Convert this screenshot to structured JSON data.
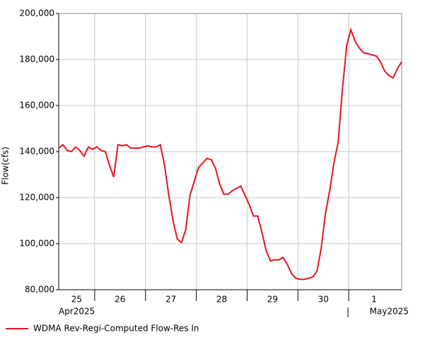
{
  "chart_data": {
    "type": "line",
    "ylabel": "Flow(cfs)",
    "xlim": [
      "2025-04-25T07:00",
      "2025-05-02T01:00"
    ],
    "ylim": [
      80000,
      200000
    ],
    "yticks": [
      {
        "value": 80000,
        "label": "80,000"
      },
      {
        "value": 100000,
        "label": "100,000"
      },
      {
        "value": 120000,
        "label": "120,000"
      },
      {
        "value": 140000,
        "label": "140,000"
      },
      {
        "value": 160000,
        "label": "160,000"
      },
      {
        "value": 180000,
        "label": "180,000"
      },
      {
        "value": 200000,
        "label": "200,000"
      }
    ],
    "grid": true,
    "days": [
      {
        "label": "25",
        "start": "2025-04-25T00:00"
      },
      {
        "label": "26",
        "start": "2025-04-26T00:00"
      },
      {
        "label": "27",
        "start": "2025-04-27T00:00"
      },
      {
        "label": "28",
        "start": "2025-04-28T00:00"
      },
      {
        "label": "29",
        "start": "2025-04-29T00:00"
      },
      {
        "label": "30",
        "start": "2025-04-30T00:00"
      },
      {
        "label": "1",
        "start": "2025-05-01T00:00"
      }
    ],
    "months": [
      {
        "label": "Apr2025",
        "start": "2025-04-01T00:00"
      },
      {
        "label": "May2025",
        "start": "2025-05-01T00:00"
      }
    ],
    "legend": "bottom-left",
    "x": [
      "2025-04-25T07:00",
      "2025-04-25T09:00",
      "2025-04-25T11:00",
      "2025-04-25T13:00",
      "2025-04-25T15:00",
      "2025-04-25T17:00",
      "2025-04-25T19:00",
      "2025-04-25T21:00",
      "2025-04-25T23:00",
      "2025-04-26T01:00",
      "2025-04-26T03:00",
      "2025-04-26T05:00",
      "2025-04-26T07:00",
      "2025-04-26T09:00",
      "2025-04-26T11:00",
      "2025-04-26T13:00",
      "2025-04-26T15:00",
      "2025-04-26T17:00",
      "2025-04-26T19:00",
      "2025-04-26T21:00",
      "2025-04-26T23:00",
      "2025-04-27T01:00",
      "2025-04-27T03:00",
      "2025-04-27T05:00",
      "2025-04-27T07:00",
      "2025-04-27T09:00",
      "2025-04-27T11:00",
      "2025-04-27T13:00",
      "2025-04-27T15:00",
      "2025-04-27T17:00",
      "2025-04-27T19:00",
      "2025-04-27T21:00",
      "2025-04-27T23:00",
      "2025-04-28T01:00",
      "2025-04-28T03:00",
      "2025-04-28T05:00",
      "2025-04-28T07:00",
      "2025-04-28T09:00",
      "2025-04-28T11:00",
      "2025-04-28T13:00",
      "2025-04-28T15:00",
      "2025-04-28T17:00",
      "2025-04-28T19:00",
      "2025-04-28T21:00",
      "2025-04-28T23:00",
      "2025-04-29T01:00",
      "2025-04-29T03:00",
      "2025-04-29T05:00",
      "2025-04-29T07:00",
      "2025-04-29T09:00",
      "2025-04-29T11:00",
      "2025-04-29T13:00",
      "2025-04-29T15:00",
      "2025-04-29T17:00",
      "2025-04-29T19:00",
      "2025-04-29T21:00",
      "2025-04-29T23:00",
      "2025-04-30T01:00",
      "2025-04-30T03:00",
      "2025-04-30T05:00",
      "2025-04-30T07:00",
      "2025-04-30T09:00",
      "2025-04-30T11:00",
      "2025-04-30T13:00",
      "2025-04-30T15:00",
      "2025-04-30T17:00",
      "2025-04-30T19:00",
      "2025-04-30T21:00",
      "2025-04-30T23:00",
      "2025-05-01T01:00",
      "2025-05-01T03:00",
      "2025-05-01T05:00",
      "2025-05-01T07:00",
      "2025-05-01T09:00",
      "2025-05-01T11:00",
      "2025-05-01T13:00",
      "2025-05-01T15:00",
      "2025-05-01T17:00",
      "2025-05-01T19:00",
      "2025-05-01T21:00",
      "2025-05-01T23:00",
      "2025-05-02T01:00"
    ],
    "series": [
      {
        "name": "WDMA Rev-Regi-Computed Flow-Res In",
        "color": "#e8141b",
        "values": [
          141500,
          143000,
          140500,
          140000,
          142000,
          140500,
          138000,
          142000,
          141000,
          142000,
          140500,
          140000,
          134000,
          129000,
          143000,
          142500,
          143000,
          141500,
          141500,
          141500,
          142000,
          142500,
          142000,
          142000,
          143000,
          134000,
          121000,
          110000,
          102000,
          100500,
          106000,
          121000,
          127000,
          133000,
          135000,
          137000,
          136500,
          133000,
          126000,
          121500,
          121500,
          123000,
          124000,
          125000,
          121000,
          117000,
          112000,
          112000,
          105000,
          97000,
          92500,
          93000,
          93000,
          94000,
          91000,
          87000,
          85000,
          84500,
          84500,
          85000,
          85500,
          88000,
          98000,
          113000,
          123000,
          135000,
          144000,
          167000,
          186000,
          193000,
          188000,
          185000,
          183000,
          182500,
          182000,
          181500,
          179000,
          175000,
          173000,
          172000,
          176000,
          179000
        ]
      }
    ]
  }
}
